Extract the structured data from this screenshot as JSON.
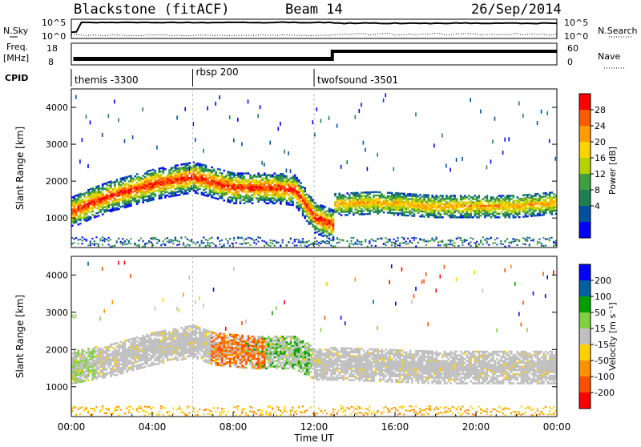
{
  "header": {
    "station": "Blackstone (fitACF)",
    "beam": "Beam 14",
    "date": "26/Sep/2014"
  },
  "strip_labels": {
    "nsky": "N.Sky",
    "nsky_top": "10^5",
    "nsky_bottom": "10^0",
    "freq": "Freq.",
    "freq_unit": "[MHz]",
    "freq_top": "18",
    "freq_bottom": "8",
    "cpid": "CPID",
    "nsearch": "N.Search",
    "nsearch_top": "10^5",
    "nsearch_bottom": "10^0",
    "nave": "Nave",
    "nave_top": "60",
    "nave_bottom": "0"
  },
  "cpid_modes": [
    {
      "name": "themis -3300",
      "start_hour": 0
    },
    {
      "name": "rbsp 200",
      "start_hour": 6
    },
    {
      "name": "twofsound -3501",
      "start_hour": 12
    }
  ],
  "colorbars": {
    "power": {
      "title": "Power [dB]",
      "ticks": [
        "28",
        "24",
        "20",
        "16",
        "12",
        "8",
        "4"
      ],
      "colors": [
        "#ff0000",
        "#ff5a00",
        "#ff9c00",
        "#ffd200",
        "#b4d200",
        "#40a040",
        "#1e8050",
        "#0050a0",
        "#0000ff"
      ]
    },
    "velocity": {
      "title": "Velocity [m s⁻¹]",
      "ticks": [
        "200",
        "100",
        "50",
        "15",
        "-15",
        "-50",
        "-100",
        "-200"
      ],
      "colors": [
        "#0000ff",
        "#0060a0",
        "#00a000",
        "#80d040",
        "#c0c0c0",
        "#ffd000",
        "#ff9000",
        "#ff5000",
        "#ff0000"
      ]
    }
  },
  "axes": {
    "ylabel": "Slant Range [km]",
    "xlabel": "Time UT",
    "x_ticks": [
      "00:00",
      "04:00",
      "08:00",
      "12:00",
      "16:00",
      "20:00",
      "00:00"
    ],
    "y_ticks": [
      "1000",
      "2000",
      "3000",
      "4000"
    ]
  },
  "chart_data": [
    {
      "type": "heatmap",
      "name": "Power",
      "x_unit": "hours UT",
      "xlim": [
        0,
        24
      ],
      "ylim": [
        200,
        4500
      ],
      "ylabel": "Slant Range [km]",
      "colorbar": "Power [dB]",
      "band_center_km": [
        [
          0,
          1150
        ],
        [
          1,
          1400
        ],
        [
          2,
          1600
        ],
        [
          3,
          1750
        ],
        [
          4,
          1900
        ],
        [
          5,
          2000
        ],
        [
          6,
          2100
        ],
        [
          7,
          1950
        ],
        [
          8,
          1800
        ],
        [
          9,
          1800
        ],
        [
          10,
          1800
        ],
        [
          11,
          1750
        ],
        [
          11.5,
          1400
        ],
        [
          12,
          1000
        ],
        [
          12.9,
          800
        ],
        [
          13,
          1350
        ],
        [
          15,
          1400
        ],
        [
          18,
          1300
        ],
        [
          20,
          1300
        ],
        [
          22,
          1300
        ],
        [
          24,
          1400
        ]
      ]
    },
    {
      "type": "heatmap",
      "name": "Velocity",
      "x_unit": "hours UT",
      "xlim": [
        0,
        24
      ],
      "ylim": [
        200,
        4500
      ],
      "ylabel": "Slant Range [km]",
      "colorbar": "Velocity [m s⁻¹]",
      "band_center_km": [
        [
          0,
          1500
        ],
        [
          2,
          1700
        ],
        [
          4,
          2000
        ],
        [
          6,
          2200
        ],
        [
          7,
          2000
        ],
        [
          9,
          1900
        ],
        [
          11,
          1900
        ],
        [
          12,
          1600
        ],
        [
          13,
          1600
        ],
        [
          18,
          1500
        ],
        [
          24,
          1500
        ]
      ]
    }
  ]
}
